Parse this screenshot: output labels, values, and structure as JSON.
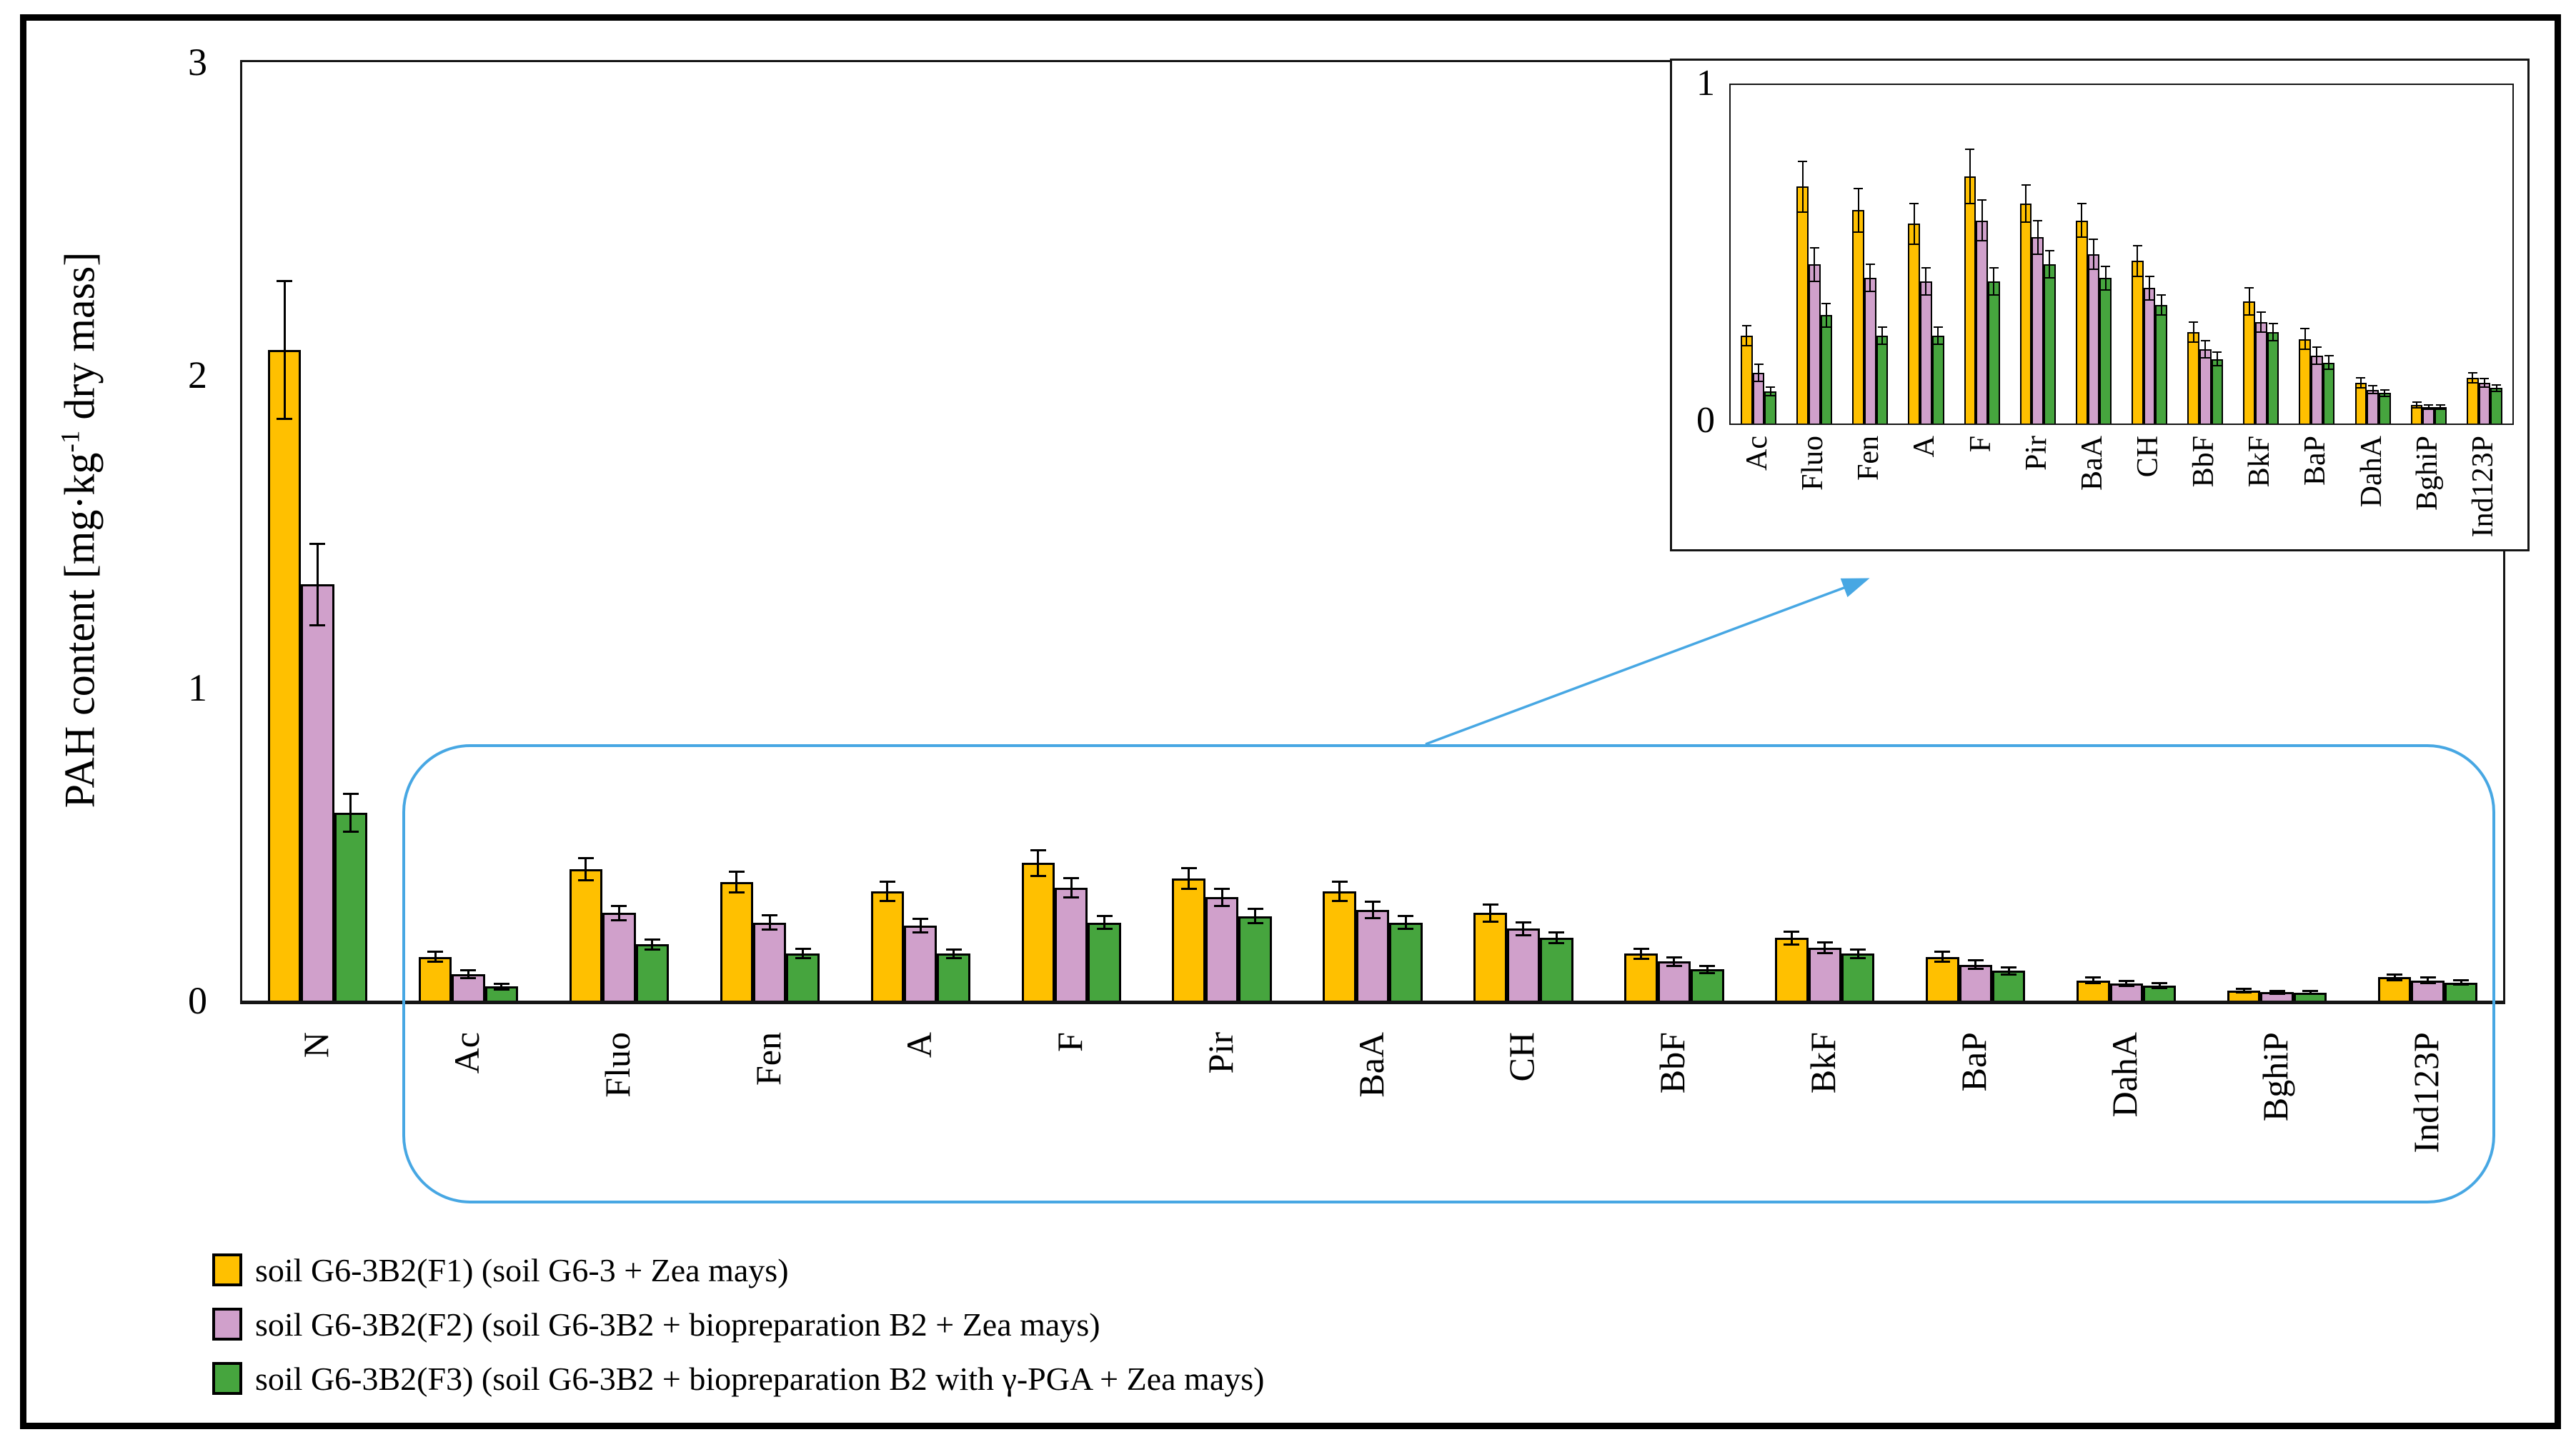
{
  "figure": {
    "kind": "grouped bar chart with magnified inset",
    "background": "#ffffff",
    "frame_color": "#000000"
  },
  "colors": {
    "series_f1": "#FFC000",
    "series_f2": "#D0A0CB",
    "series_f3": "#46A53E",
    "callout_blue": "#47A7E3",
    "axis": "#151515"
  },
  "annotations": {
    "callout_rect": {
      "shape": "rounded-rectangle",
      "color": "#47A7E3"
    },
    "arrow": {
      "color": "#47A7E3",
      "direction": "up-right",
      "points_to": "inset chart"
    }
  },
  "chart_data": [
    {
      "id": "main",
      "type": "bar",
      "title": "",
      "xlabel": "",
      "ylabel": "PAH content [mg·kg⁻¹ dry mass]",
      "ylabel_parts": {
        "pre": "PAH content [mg·kg",
        "sup": "-1",
        "post": " dry mass]"
      },
      "ylim": [
        0,
        3
      ],
      "yticks": [
        "0",
        "1",
        "2",
        "3"
      ],
      "grid": false,
      "error_bars": true,
      "legend_position": "bottom-left",
      "categories": [
        "N",
        "Ac",
        "Fluo",
        "Fen",
        "A",
        "F",
        "Pir",
        "BaA",
        "CH",
        "BbF",
        "BkF",
        "BaP",
        "DahA",
        "BghiP",
        "Ind123P"
      ],
      "series": [
        {
          "name": "soil G6-3B2(F1) (soil G6-3 + Zea mays)",
          "color": "#FFC000",
          "values": [
            2.08,
            0.14,
            0.42,
            0.38,
            0.35,
            0.44,
            0.39,
            0.35,
            0.28,
            0.15,
            0.2,
            0.14,
            0.065,
            0.032,
            0.075
          ],
          "errors": [
            0.22,
            0.015,
            0.035,
            0.032,
            0.03,
            0.04,
            0.032,
            0.03,
            0.026,
            0.015,
            0.02,
            0.015,
            0.008,
            0.004,
            0.008
          ]
        },
        {
          "name": "soil G6-3B2(F2) (soil G6-3B2 + biopreparation B2 + Zea mays)",
          "color": "#D0A0CB",
          "values": [
            1.33,
            0.085,
            0.28,
            0.25,
            0.24,
            0.36,
            0.33,
            0.29,
            0.23,
            0.125,
            0.17,
            0.115,
            0.055,
            0.027,
            0.065
          ],
          "errors": [
            0.13,
            0.012,
            0.022,
            0.022,
            0.02,
            0.03,
            0.026,
            0.025,
            0.02,
            0.013,
            0.016,
            0.012,
            0.007,
            0.003,
            0.007
          ]
        },
        {
          "name": "soil G6-3B2(F3) (soil G6-3B2 + biopreparation B2 with γ-PGA + Zea mays)",
          "color": "#46A53E",
          "values": [
            0.6,
            0.045,
            0.18,
            0.15,
            0.15,
            0.25,
            0.27,
            0.25,
            0.2,
            0.1,
            0.15,
            0.095,
            0.048,
            0.026,
            0.058
          ],
          "errors": [
            0.06,
            0.008,
            0.015,
            0.014,
            0.012,
            0.02,
            0.022,
            0.02,
            0.016,
            0.01,
            0.013,
            0.01,
            0.006,
            0.003,
            0.006
          ]
        }
      ]
    },
    {
      "id": "inset",
      "type": "bar",
      "title": "",
      "xlabel": "",
      "ylabel": "",
      "ylim": [
        0,
        1
      ],
      "yticks": [
        "0",
        "1"
      ],
      "grid": false,
      "error_bars": true,
      "categories": [
        "Ac",
        "Fluo",
        "Fen",
        "A",
        "F",
        "Pir",
        "BaA",
        "CH",
        "BbF",
        "BkF",
        "BaP",
        "DahA",
        "BghiP",
        "Ind123P"
      ],
      "series": [
        {
          "name": "soil G6-3B2(F1) (soil G6-3 + Zea mays)",
          "color": "#FFC000",
          "values": [
            0.26,
            0.7,
            0.63,
            0.59,
            0.73,
            0.65,
            0.6,
            0.48,
            0.27,
            0.36,
            0.25,
            0.12,
            0.055,
            0.135
          ],
          "errors": [
            0.03,
            0.075,
            0.065,
            0.06,
            0.08,
            0.055,
            0.05,
            0.045,
            0.03,
            0.04,
            0.03,
            0.015,
            0.008,
            0.015
          ]
        },
        {
          "name": "soil G6-3B2(F2) (soil G6-3B2 + biopreparation B2 + Zea mays)",
          "color": "#D0A0CB",
          "values": [
            0.15,
            0.47,
            0.43,
            0.42,
            0.6,
            0.55,
            0.5,
            0.4,
            0.22,
            0.3,
            0.2,
            0.1,
            0.048,
            0.12
          ],
          "errors": [
            0.025,
            0.05,
            0.04,
            0.04,
            0.06,
            0.05,
            0.045,
            0.035,
            0.025,
            0.03,
            0.025,
            0.012,
            0.006,
            0.012
          ]
        },
        {
          "name": "soil G6-3B2(F3) (soil G6-3B2 + biopreparation B2 with γ-PGA + Zea mays)",
          "color": "#46A53E",
          "values": [
            0.095,
            0.32,
            0.26,
            0.26,
            0.42,
            0.47,
            0.43,
            0.35,
            0.19,
            0.27,
            0.18,
            0.09,
            0.048,
            0.105
          ],
          "errors": [
            0.012,
            0.035,
            0.025,
            0.025,
            0.04,
            0.04,
            0.035,
            0.03,
            0.02,
            0.025,
            0.02,
            0.01,
            0.006,
            0.01
          ]
        }
      ]
    }
  ]
}
